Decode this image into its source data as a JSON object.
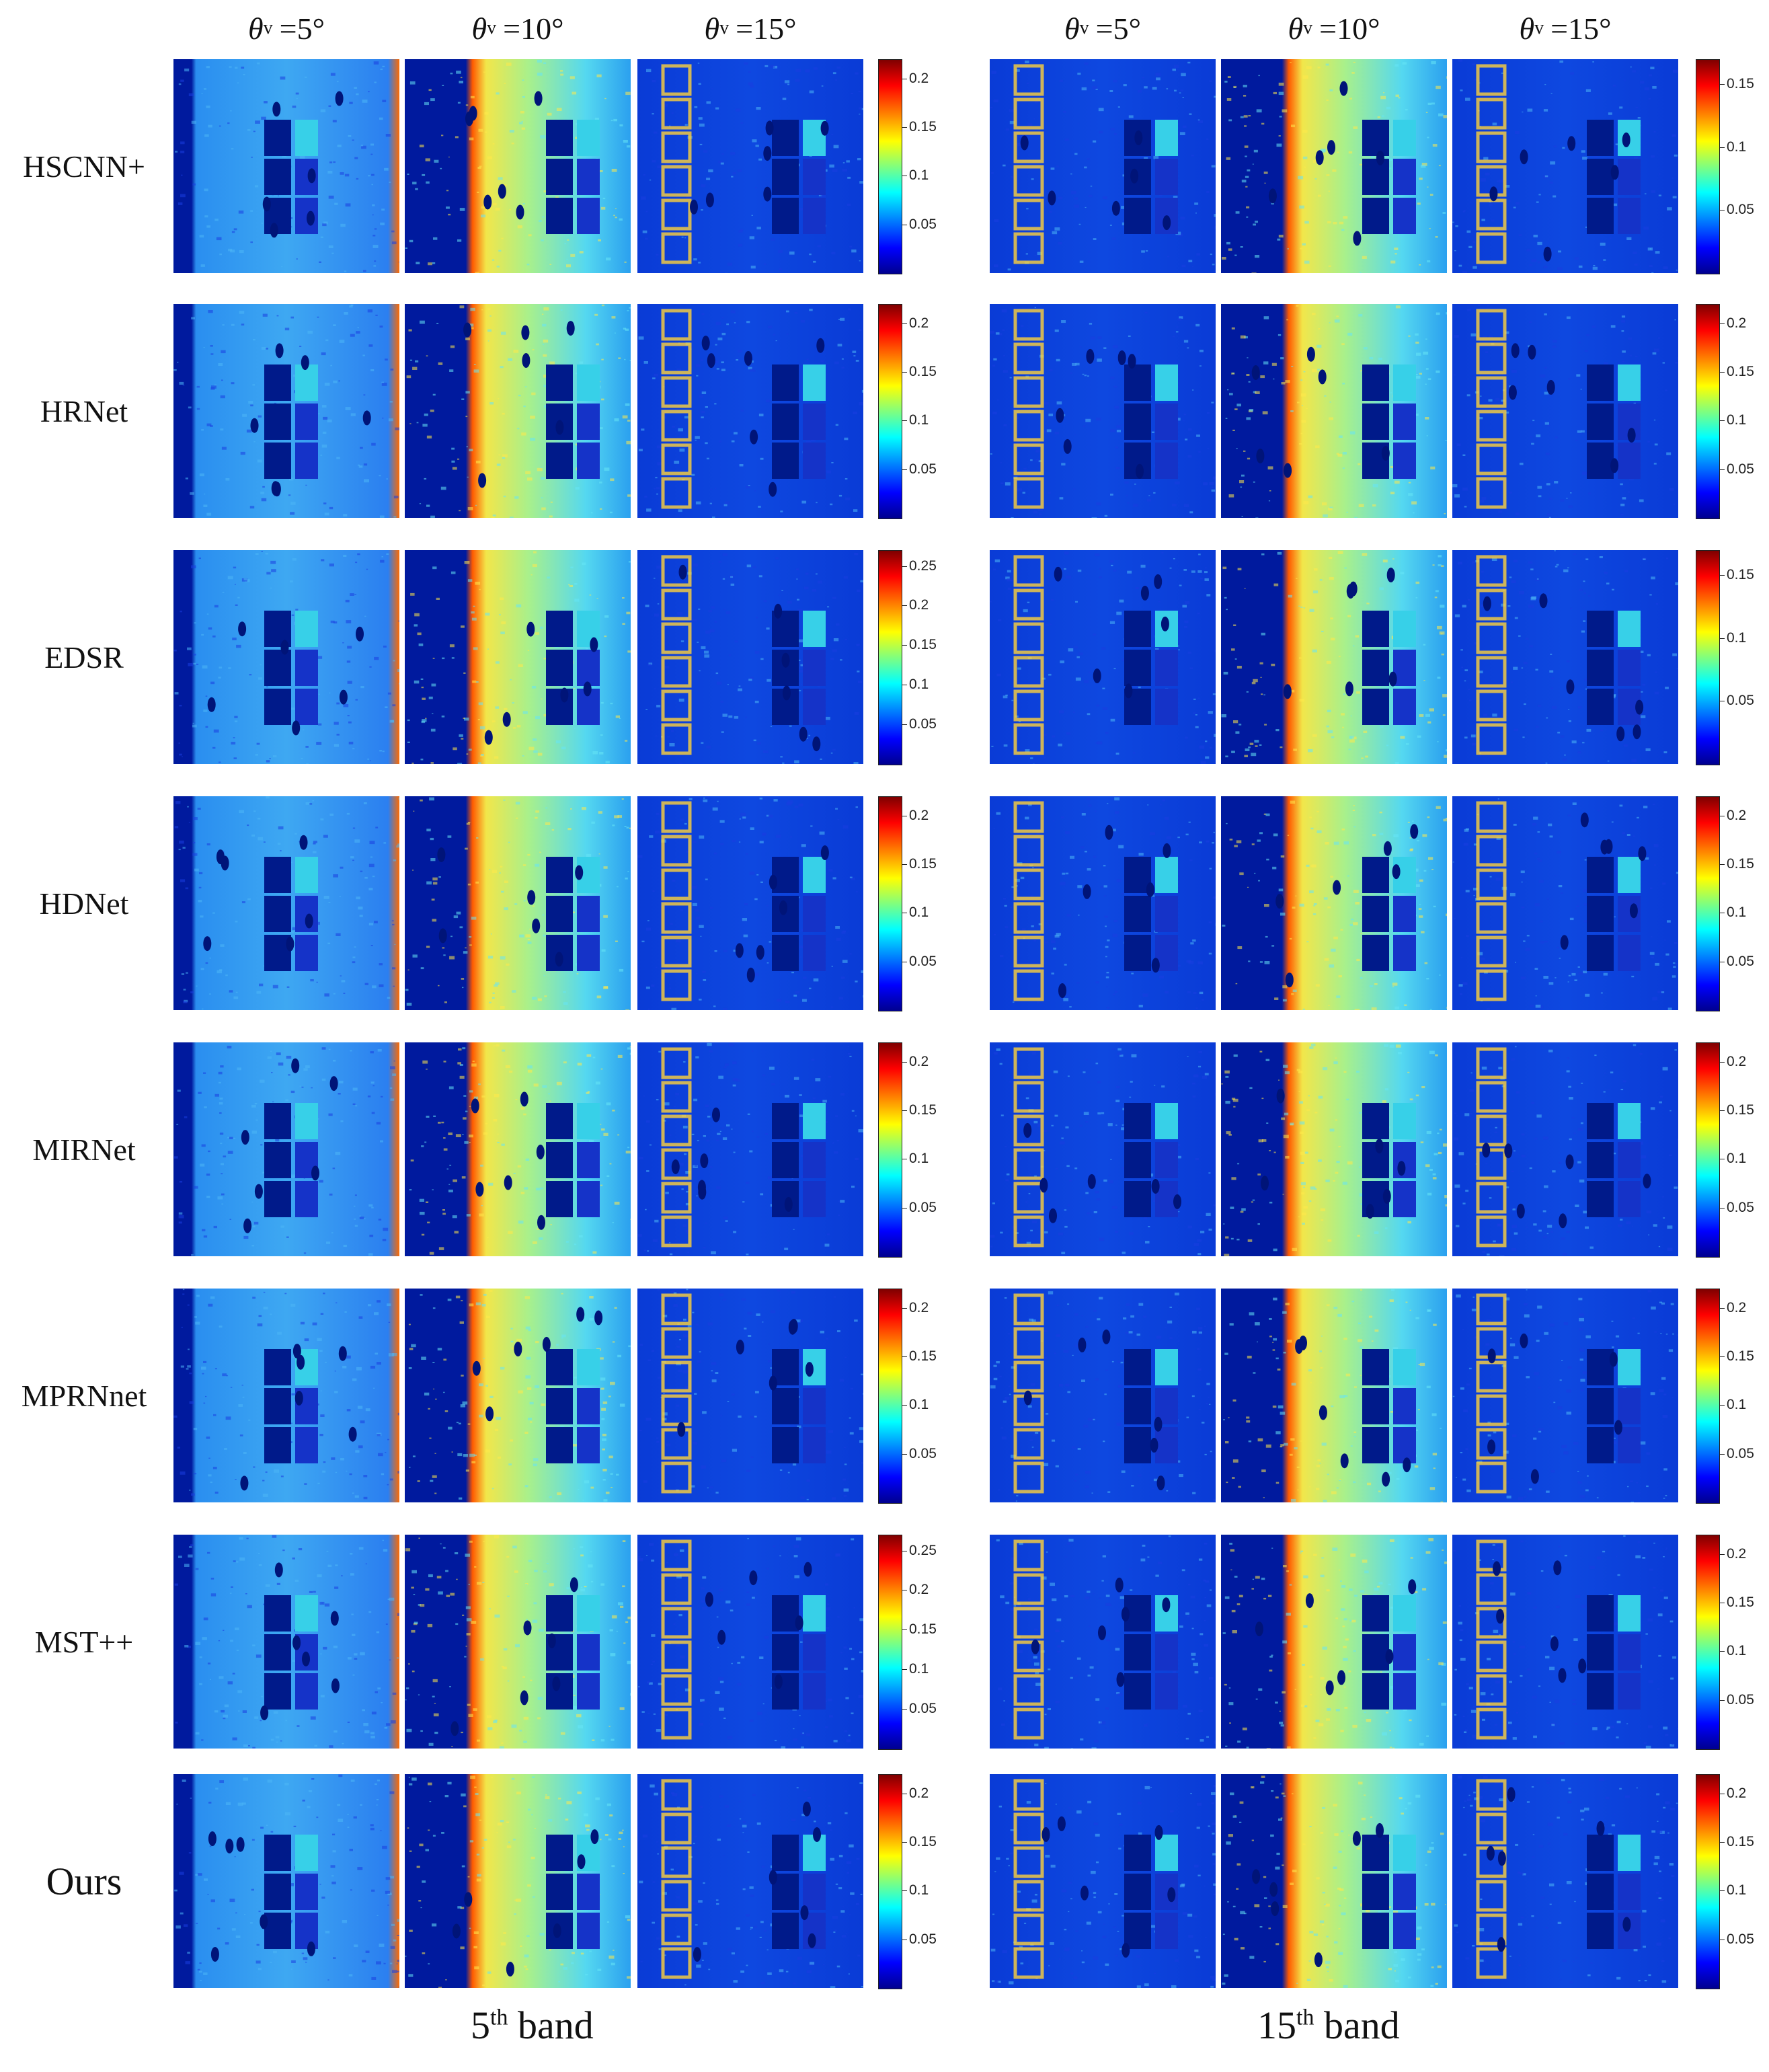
{
  "column_headers": [
    {
      "symbol": "θ",
      "subscript": "v",
      "angle": "=5°"
    },
    {
      "symbol": "θ",
      "subscript": "v",
      "angle": "=10°"
    },
    {
      "symbol": "θ",
      "subscript": "v",
      "angle": "=15°"
    },
    {
      "symbol": "θ",
      "subscript": "v",
      "angle": "=5°"
    },
    {
      "symbol": "θ",
      "subscript": "v",
      "angle": "=10°"
    },
    {
      "symbol": "θ",
      "subscript": "v",
      "angle": "=15°"
    }
  ],
  "rows": [
    {
      "label": "HSCNN+",
      "left_ticks": [
        "0.2",
        "0.15",
        "0.1",
        "0.05"
      ],
      "right_ticks": [
        "0.15",
        "0.1",
        "0.05"
      ]
    },
    {
      "label": "HRNet",
      "left_ticks": [
        "0.2",
        "0.15",
        "0.1",
        "0.05"
      ],
      "right_ticks": [
        "0.2",
        "0.15",
        "0.1",
        "0.05"
      ]
    },
    {
      "label": "EDSR",
      "left_ticks": [
        "0.25",
        "0.2",
        "0.15",
        "0.1",
        "0.05"
      ],
      "right_ticks": [
        "0.15",
        "0.1",
        "0.05"
      ]
    },
    {
      "label": "HDNet",
      "left_ticks": [
        "0.2",
        "0.15",
        "0.1",
        "0.05"
      ],
      "right_ticks": [
        "0.2",
        "0.15",
        "0.1",
        "0.05"
      ]
    },
    {
      "label": "MIRNet",
      "left_ticks": [
        "0.2",
        "0.15",
        "0.1",
        "0.05"
      ],
      "right_ticks": [
        "0.2",
        "0.15",
        "0.1",
        "0.05"
      ]
    },
    {
      "label": "MPRNnet",
      "left_ticks": [
        "0.2",
        "0.15",
        "0.1",
        "0.05"
      ],
      "right_ticks": [
        "0.2",
        "0.15",
        "0.1",
        "0.05"
      ]
    },
    {
      "label": "MST++",
      "left_ticks": [
        "0.25",
        "0.2",
        "0.15",
        "0.1",
        "0.05"
      ],
      "right_ticks": [
        "0.2",
        "0.15",
        "0.1",
        "0.05"
      ]
    },
    {
      "label": "Ours",
      "left_ticks": [
        "0.2",
        "0.15",
        "0.1",
        "0.05"
      ],
      "right_ticks": [
        "0.2",
        "0.15",
        "0.1",
        "0.05"
      ]
    }
  ],
  "band_labels": [
    {
      "number": "5",
      "suffix": "th",
      "word": "band"
    },
    {
      "number": "15",
      "suffix": "th",
      "word": "band"
    }
  ],
  "colors": {
    "low": "#00008f",
    "mid_low": "#0000ff",
    "mid": "#00ffff",
    "mid_high": "#ffff00",
    "high": "#ff0000",
    "max": "#7f0000"
  }
}
